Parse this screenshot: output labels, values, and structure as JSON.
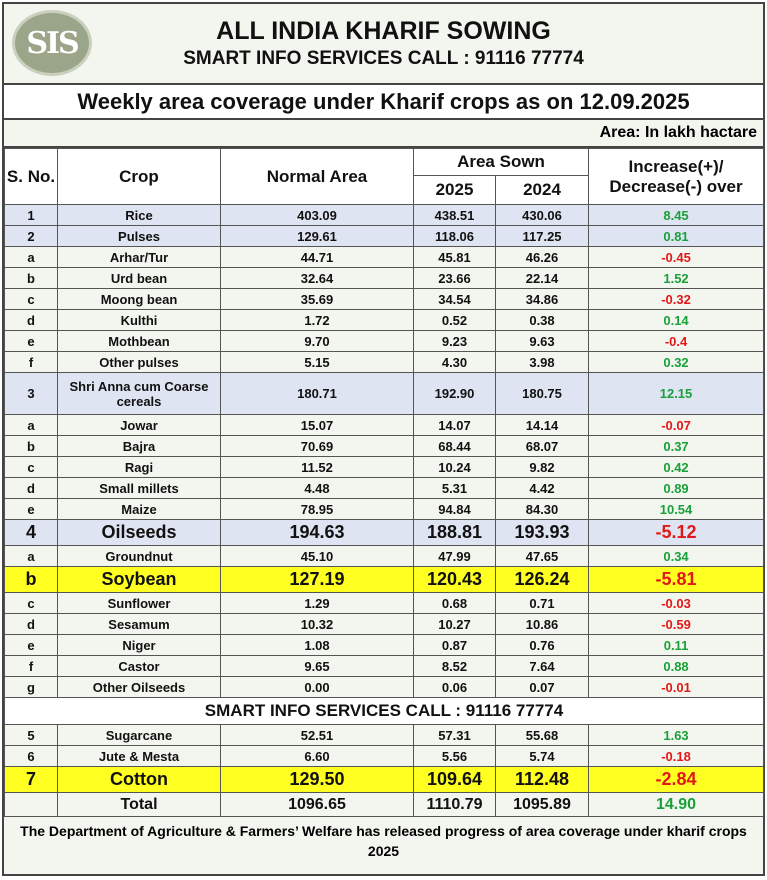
{
  "header": {
    "logo": "SIS",
    "title": "ALL INDIA KHARIF SOWING",
    "subtitle": "SMART INFO SERVICES CALL : 91116 77774"
  },
  "table_title": "Weekly area coverage under Kharif crops as on 12.09.2025",
  "unit": "Area:  In lakh hactare",
  "columns": {
    "sno": "S. No.",
    "crop": "Crop",
    "normal": "Normal Area",
    "sown": "Area Sown",
    "y2025": "2025",
    "y2024": "2024",
    "change": "Increase(+)/ Decrease(-) over"
  },
  "rows": [
    {
      "sno": "1",
      "crop": "Rice",
      "normal": "403.09",
      "y2025": "438.51",
      "y2024": "430.06",
      "change": "8.45",
      "style": "blue"
    },
    {
      "sno": "2",
      "crop": "Pulses",
      "normal": "129.61",
      "y2025": "118.06",
      "y2024": "117.25",
      "change": "0.81",
      "style": "blue"
    },
    {
      "sno": "a",
      "crop": "Arhar/Tur",
      "normal": "44.71",
      "y2025": "45.81",
      "y2024": "46.26",
      "change": "-0.45",
      "style": "green"
    },
    {
      "sno": "b",
      "crop": "Urd bean",
      "normal": "32.64",
      "y2025": "23.66",
      "y2024": "22.14",
      "change": "1.52",
      "style": "green"
    },
    {
      "sno": "c",
      "crop": "Moong bean",
      "normal": "35.69",
      "y2025": "34.54",
      "y2024": "34.86",
      "change": "-0.32",
      "style": "green"
    },
    {
      "sno": "d",
      "crop": "Kulthi",
      "normal": "1.72",
      "y2025": "0.52",
      "y2024": "0.38",
      "change": "0.14",
      "style": "green"
    },
    {
      "sno": "e",
      "crop": "Mothbean",
      "normal": "9.70",
      "y2025": "9.23",
      "y2024": "9.63",
      "change": "-0.4",
      "style": "green"
    },
    {
      "sno": "f",
      "crop": "Other pulses",
      "normal": "5.15",
      "y2025": "4.30",
      "y2024": "3.98",
      "change": "0.32",
      "style": "green"
    },
    {
      "sno": "3",
      "crop": "Shri Anna cum Coarse cereals",
      "normal": "180.71",
      "y2025": "192.90",
      "y2024": "180.75",
      "change": "12.15",
      "style": "blue tall"
    },
    {
      "sno": "a",
      "crop": "Jowar",
      "normal": "15.07",
      "y2025": "14.07",
      "y2024": "14.14",
      "change": "-0.07",
      "style": "green"
    },
    {
      "sno": "b",
      "crop": "Bajra",
      "normal": "70.69",
      "y2025": "68.44",
      "y2024": "68.07",
      "change": "0.37",
      "style": "green"
    },
    {
      "sno": "c",
      "crop": "Ragi",
      "normal": "11.52",
      "y2025": "10.24",
      "y2024": "9.82",
      "change": "0.42",
      "style": "green"
    },
    {
      "sno": "d",
      "crop": "Small millets",
      "normal": "4.48",
      "y2025": "5.31",
      "y2024": "4.42",
      "change": "0.89",
      "style": "green"
    },
    {
      "sno": "e",
      "crop": "Maize",
      "normal": "78.95",
      "y2025": "94.84",
      "y2024": "84.30",
      "change": "10.54",
      "style": "green"
    },
    {
      "sno": "4",
      "crop": "Oilseeds",
      "normal": "194.63",
      "y2025": "188.81",
      "y2024": "193.93",
      "change": "-5.12",
      "style": "blue big"
    },
    {
      "sno": "a",
      "crop": "Groundnut",
      "normal": "45.10",
      "y2025": "47.99",
      "y2024": "47.65",
      "change": "0.34",
      "style": "green"
    },
    {
      "sno": "b",
      "crop": "Soybean",
      "normal": "127.19",
      "y2025": "120.43",
      "y2024": "126.24",
      "change": "-5.81",
      "style": "yel big"
    },
    {
      "sno": "c",
      "crop": "Sunflower",
      "normal": "1.29",
      "y2025": "0.68",
      "y2024": "0.71",
      "change": "-0.03",
      "style": "green"
    },
    {
      "sno": "d",
      "crop": "Sesamum",
      "normal": "10.32",
      "y2025": "10.27",
      "y2024": "10.86",
      "change": "-0.59",
      "style": "green"
    },
    {
      "sno": "e",
      "crop": "Niger",
      "normal": "1.08",
      "y2025": "0.87",
      "y2024": "0.76",
      "change": "0.11",
      "style": "green"
    },
    {
      "sno": "f",
      "crop": "Castor",
      "normal": "9.65",
      "y2025": "8.52",
      "y2024": "7.64",
      "change": "0.88",
      "style": "green"
    },
    {
      "sno": "g",
      "crop": "Other Oilseeds",
      "normal": "0.00",
      "y2025": "0.06",
      "y2024": "0.07",
      "change": "-0.01",
      "style": "green"
    },
    {
      "mid": "SMART INFO SERVICES CALL : 91116 77774"
    },
    {
      "sno": "5",
      "crop": "Sugarcane",
      "normal": "52.51",
      "y2025": "57.31",
      "y2024": "55.68",
      "change": "1.63",
      "style": "green"
    },
    {
      "sno": "6",
      "crop": "Jute & Mesta",
      "normal": "6.60",
      "y2025": "5.56",
      "y2024": "5.74",
      "change": "-0.18",
      "style": "green"
    },
    {
      "sno": "7",
      "crop": "Cotton",
      "normal": "129.50",
      "y2025": "109.64",
      "y2024": "112.48",
      "change": "-2.84",
      "style": "yel big"
    },
    {
      "sno": "",
      "crop": "Total",
      "normal": "1096.65",
      "y2025": "1110.79",
      "y2024": "1095.89",
      "change": "14.90",
      "style": "green total"
    }
  ],
  "footer_note": "The Department of Agriculture & Farmers’ Welfare has released progress of area coverage under kharif crops 2025",
  "colors": {
    "positive": "#1aa03a",
    "negative": "#e01818",
    "highlight": "#ffff22",
    "blue_row": "#dfe4f2"
  }
}
